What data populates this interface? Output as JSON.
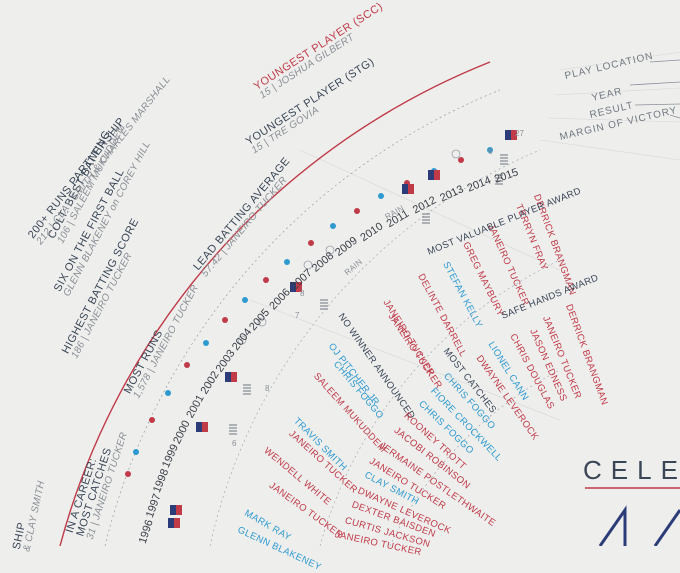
{
  "records": {
    "youngest_scc": {
      "title": "YOUNGEST PLAYER (SCC)",
      "value": "15 | JOSHUA GILBERT"
    },
    "youngest_stg": {
      "title": "YOUNGEST PLAYER (STG)",
      "value": "15 | TRE GOVIA"
    },
    "lead_batting": {
      "title": "LEAD BATTING AVERAGE",
      "value": "57.42 | JANEIRO TUCKER"
    },
    "most_runs": {
      "title": "MOST RUNS",
      "value": "1,578 | JANEIRO TUCKER"
    },
    "highest_score": {
      "title": "HIGHEST BATTING SCORE",
      "value": "186 | JANEIRO TUCKER"
    },
    "six_first_ball": {
      "title": "SIX ON THE FIRST BALL",
      "value": "GLENN BLAKENEY on COREY HILL"
    },
    "colt_best": {
      "title": "COLT: BEST BATTING",
      "value": "106 | SALEEM MUKUDDEM"
    },
    "partnership": {
      "title": "200+ RUNS PARTNERSHIP",
      "value": "212 | CLAY SMITH & CHARLES MARSHALL"
    },
    "most_catches": {
      "title1": "IN A CAREER:",
      "title2": "MOST CATCHES",
      "value": "31 | JANEIRO TUCKER"
    },
    "partial_ship": {
      "title": "SHIP",
      "value": "& CLAY SMITH"
    }
  },
  "legend": [
    "PLAY LOCATION",
    "YEAR",
    "RESULT",
    "MARGIN OF VICTORY"
  ],
  "years": [
    "1996",
    "1997",
    "1998",
    "1999",
    "2000",
    "2001",
    "2002",
    "2003",
    "2004",
    "2005",
    "2006",
    "2007",
    "2008",
    "2009",
    "2010",
    "2011",
    "2012",
    "2013",
    "2014",
    "2015"
  ],
  "rain_labels": [
    "RAIN",
    "RAIN"
  ],
  "margins": [
    "8",
    "6",
    "6",
    "27",
    "7",
    "8"
  ],
  "mvp": {
    "heading": "MOST VALUABLE PLAYER AWARD",
    "names": [
      "DERRICK BRANGMAN",
      "TERRYN FRAY",
      "JANEIRO TUCKER",
      "GREG MAYBURY",
      "STEFAN KELLY",
      "DELINTE DARRELL",
      "JANEIRO TUCKER",
      "JANEIRO TUCKER",
      "NO WINNER ANNOUNCED",
      "OJ PITCHER JR",
      "CHRIS FOGGO",
      "SALEEM MUKUDDEM",
      "TRAVIS SMITH",
      "JANEIRO TUCKER",
      "WENDELL WHITE",
      "JANEIRO TUCKER",
      "MARK RAY",
      "GLENN BLAKENEY"
    ]
  },
  "safe_hands": {
    "heading": "SAFE HANDS AWARD",
    "names": [
      "DERRICK BRANGMAN",
      "JANEIRO TUCKER",
      "JASON EDNESS",
      "CHRIS DOUGLAS",
      "LIONEL CANN",
      "DWAYNE LEVEROCK",
      "MOST CATCHES",
      "CHRIS FOGGO",
      "FIORE CROCKWELL",
      "CHRIS FOGGO",
      "ROONEY TROTT",
      "JACOBI ROBINSON",
      "JERMAINE POSTLETHWAITE",
      "JANEIRO TUCKER",
      "CLAY SMITH",
      "DWAYNE LEVEROCK",
      "DEXTER BAISDEN",
      "CURTIS JACKSON",
      "JANEIRO TUCKER"
    ]
  },
  "celebrate": "CELE",
  "colors": {
    "red": "#c03a48",
    "blue": "#2e9ad0",
    "navy": "#2b3c78",
    "text": "#3a4656"
  }
}
